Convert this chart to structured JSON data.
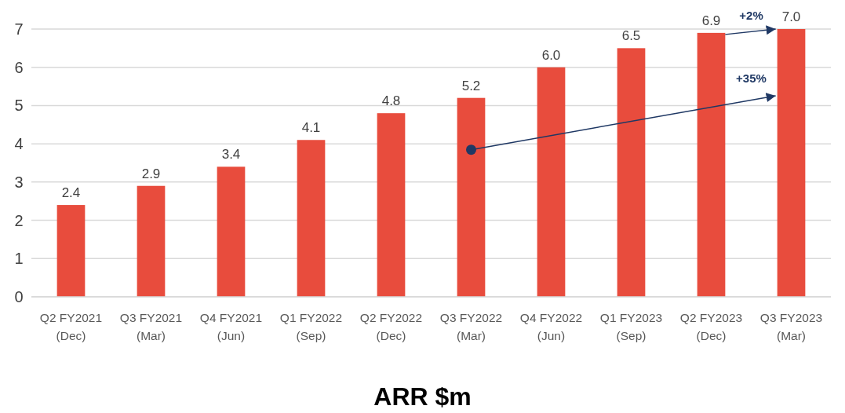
{
  "chart_data": {
    "type": "bar",
    "xlabel": "ARR $m",
    "categories": [
      "Q2 FY2021\n(Dec)",
      "Q3 FY2021\n(Mar)",
      "Q4 FY2021\n(Jun)",
      "Q1 FY2022\n(Sep)",
      "Q2 FY2022\n(Dec)",
      "Q3 FY2022\n(Mar)",
      "Q4 FY2022\n(Jun)",
      "Q1 FY2023\n(Sep)",
      "Q2 FY2023\n(Dec)",
      "Q3 FY2023\n(Mar)"
    ],
    "values": [
      2.4,
      2.9,
      3.4,
      4.1,
      4.8,
      5.2,
      6.0,
      6.5,
      6.9,
      7.0
    ],
    "color": "#e84c3d",
    "ylim": [
      0,
      7
    ],
    "yticks": [
      0,
      1,
      2,
      3,
      4,
      5,
      6,
      7
    ],
    "grid": "y",
    "value_labels": [
      "2.4",
      "2.9",
      "3.4",
      "4.1",
      "4.8",
      "5.2",
      "6.0",
      "6.5",
      "6.9",
      "7.0"
    ],
    "annotations": [
      "+2%",
      "+35%"
    ]
  }
}
